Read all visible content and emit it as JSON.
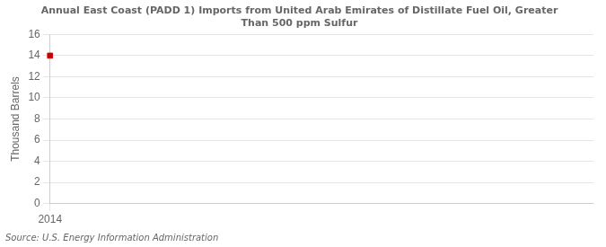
{
  "chart_data": {
    "type": "scatter",
    "title": "Annual East Coast (PADD 1) Imports from United Arab Emirates of Distillate Fuel Oil, Greater\nThan 500 ppm Sulfur",
    "ylabel": "Thousand Barrels",
    "annotations": [
      "Source: U.S. Energy Information Administration"
    ],
    "x": [
      2014
    ],
    "values": [
      14
    ],
    "color": "#cc0000",
    "marker": "square",
    "xlim": [
      2014,
      2016.5
    ],
    "xticks": [
      2014
    ],
    "ylim": [
      0,
      16
    ],
    "yticks": [
      0,
      2,
      4,
      6,
      8,
      10,
      12,
      14,
      16
    ],
    "grid": true
  }
}
